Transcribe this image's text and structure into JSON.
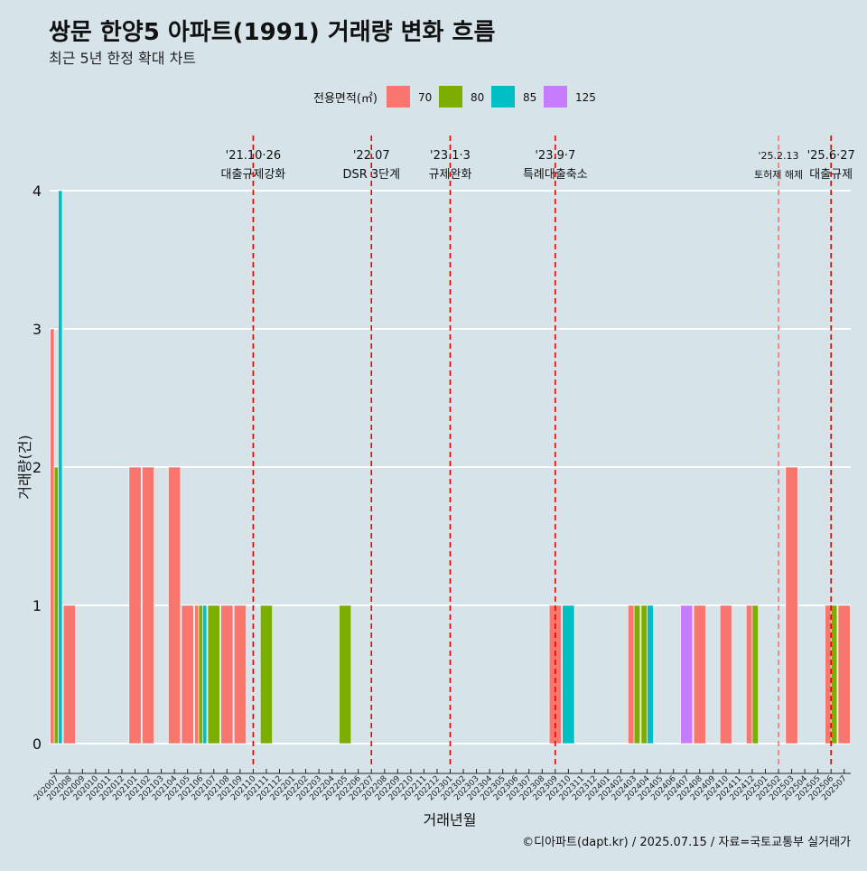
{
  "chart_data": {
    "type": "bar",
    "title": "쌍문 한양5 아파트(1991) 거래량 변화 흐름",
    "subtitle": "최근 5년 한정 확대 차트",
    "xlabel": "거래년월",
    "ylabel": "거래량(건)",
    "caption": "©디아파트(dapt.kr) / 2025.07.15 / 자료=국토교통부 실거래가",
    "legend_title": "전용면적(㎡)",
    "legend_position": "top",
    "ylim": [
      0,
      4
    ],
    "yticks": [
      "0",
      "1",
      "2",
      "3",
      "4"
    ],
    "grid": true,
    "categories": [
      "202007",
      "202008",
      "202009",
      "202010",
      "202011",
      "202012",
      "202101",
      "202102",
      "202103",
      "202104",
      "202105",
      "202106",
      "202107",
      "202108",
      "202109",
      "202110",
      "202111",
      "202112",
      "202201",
      "202202",
      "202203",
      "202204",
      "202205",
      "202206",
      "202207",
      "202208",
      "202209",
      "202210",
      "202211",
      "202212",
      "202301",
      "202302",
      "202303",
      "202304",
      "202305",
      "202306",
      "202307",
      "202308",
      "202309",
      "202310",
      "202311",
      "202312",
      "202401",
      "202402",
      "202403",
      "202404",
      "202405",
      "202406",
      "202407",
      "202408",
      "202409",
      "202410",
      "202411",
      "202412",
      "202501",
      "202502",
      "202503",
      "202504",
      "202505",
      "202506",
      "202507"
    ],
    "series": [
      {
        "name": "70",
        "color": "#f8766d",
        "values": [
          3,
          1,
          0,
          0,
          0,
          0,
          2,
          2,
          0,
          2,
          1,
          1,
          0,
          1,
          1,
          0,
          0,
          0,
          0,
          0,
          0,
          0,
          0,
          0,
          0,
          0,
          0,
          0,
          0,
          0,
          0,
          0,
          0,
          0,
          0,
          0,
          0,
          0,
          1,
          0,
          0,
          0,
          0,
          0,
          1,
          0,
          0,
          0,
          0,
          1,
          0,
          1,
          0,
          1,
          0,
          0,
          2,
          0,
          0,
          1,
          1
        ]
      },
      {
        "name": "80",
        "color": "#7cae00",
        "values": [
          2,
          0,
          0,
          0,
          0,
          0,
          0,
          0,
          0,
          0,
          0,
          1,
          1,
          0,
          0,
          0,
          1,
          0,
          0,
          0,
          0,
          0,
          1,
          0,
          0,
          0,
          0,
          0,
          0,
          0,
          0,
          0,
          0,
          0,
          0,
          0,
          0,
          0,
          0,
          0,
          0,
          0,
          0,
          0,
          1,
          1,
          0,
          0,
          0,
          0,
          0,
          0,
          0,
          1,
          0,
          0,
          0,
          0,
          0,
          1,
          0
        ]
      },
      {
        "name": "85",
        "color": "#00bfc4",
        "values": [
          4,
          0,
          0,
          0,
          0,
          0,
          0,
          0,
          0,
          0,
          0,
          1,
          0,
          0,
          0,
          0,
          0,
          0,
          0,
          0,
          0,
          0,
          0,
          0,
          0,
          0,
          0,
          0,
          0,
          0,
          0,
          0,
          0,
          0,
          0,
          0,
          0,
          0,
          0,
          1,
          0,
          0,
          0,
          0,
          0,
          1,
          0,
          0,
          0,
          0,
          0,
          0,
          0,
          0,
          0,
          0,
          0,
          0,
          0,
          0,
          0
        ]
      },
      {
        "name": "125",
        "color": "#c77cff",
        "values": [
          0,
          0,
          0,
          0,
          0,
          0,
          0,
          0,
          0,
          0,
          0,
          0,
          0,
          0,
          0,
          0,
          0,
          0,
          0,
          0,
          0,
          0,
          0,
          0,
          0,
          0,
          0,
          0,
          0,
          0,
          0,
          0,
          0,
          0,
          0,
          0,
          0,
          0,
          0,
          0,
          0,
          0,
          0,
          0,
          0,
          0,
          0,
          0,
          1,
          0,
          0,
          0,
          0,
          0,
          0,
          0,
          0,
          0,
          0,
          0,
          0
        ]
      }
    ],
    "annotations": [
      {
        "x": "202110",
        "line1": "'21.10·26",
        "line2": "대출규제강화",
        "color": "#ee0000",
        "small": false
      },
      {
        "x": "202207",
        "line1": "'22.07",
        "line2": "DSR 3단계",
        "color": "#ee0000",
        "small": false
      },
      {
        "x": "202301",
        "line1": "'23.1·3",
        "line2": "규제완화",
        "color": "#ee0000",
        "small": false
      },
      {
        "x": "202309",
        "line1": "'23.9·7",
        "line2": "특례대출축소",
        "color": "#ee0000",
        "small": false
      },
      {
        "x": "202502",
        "line1": "'25.2.13",
        "line2": "토허제 해제",
        "color": "#ff6f6f",
        "small": true
      },
      {
        "x": "202506",
        "line1": "'25.6·27",
        "line2": "대출규제",
        "color": "#ee0000",
        "small": false
      }
    ]
  }
}
